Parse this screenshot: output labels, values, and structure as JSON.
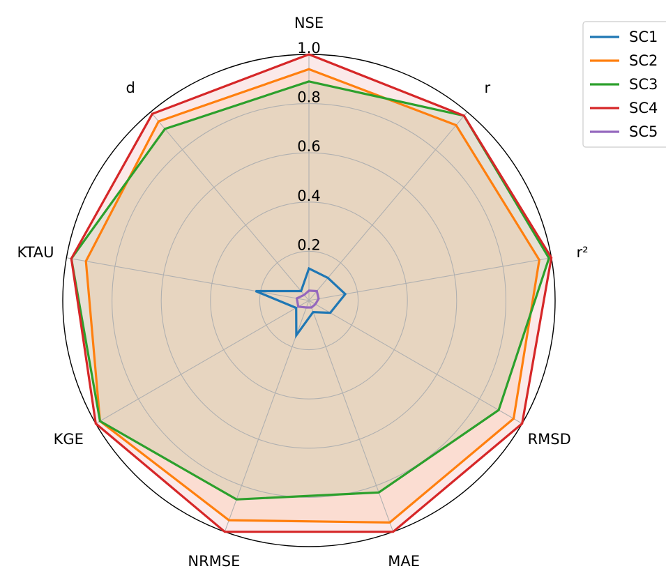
{
  "chart_data": {
    "type": "radar",
    "axes": [
      "NSE",
      "r",
      "r²",
      "RMSD",
      "MAE",
      "NRMSE",
      "KGE",
      "KTAU",
      "d"
    ],
    "rticks": [
      "0.2",
      "0.4",
      "0.6",
      "0.8",
      "1.0"
    ],
    "rtick_values": [
      0.2,
      0.4,
      0.6,
      0.8,
      1.0
    ],
    "rlim": [
      0,
      1.0
    ],
    "grid": true,
    "legend_position": "top-right",
    "series": [
      {
        "name": "SC1",
        "color": "#1f77b4",
        "fill": false,
        "values": [
          0.13,
          0.12,
          0.15,
          0.1,
          0.05,
          0.15,
          0.06,
          0.22,
          0.05
        ]
      },
      {
        "name": "SC2",
        "color": "#ff7f0e",
        "fill": true,
        "values": [
          0.94,
          0.93,
          0.95,
          0.96,
          0.96,
          0.95,
          0.98,
          0.92,
          0.95
        ]
      },
      {
        "name": "SC3",
        "color": "#2ca02c",
        "fill": true,
        "values": [
          0.89,
          0.98,
          0.99,
          0.89,
          0.83,
          0.86,
          0.98,
          0.98,
          0.91
        ]
      },
      {
        "name": "SC4",
        "color": "#d62728",
        "fill": true,
        "values": [
          1.0,
          0.98,
          1.0,
          1.0,
          1.0,
          1.0,
          1.0,
          0.98,
          0.99
        ]
      },
      {
        "name": "SC5",
        "color": "#9467bd",
        "fill": false,
        "values": [
          0.04,
          0.05,
          0.04,
          0.03,
          0.03,
          0.03,
          0.05,
          0.05,
          0.03
        ]
      }
    ]
  }
}
